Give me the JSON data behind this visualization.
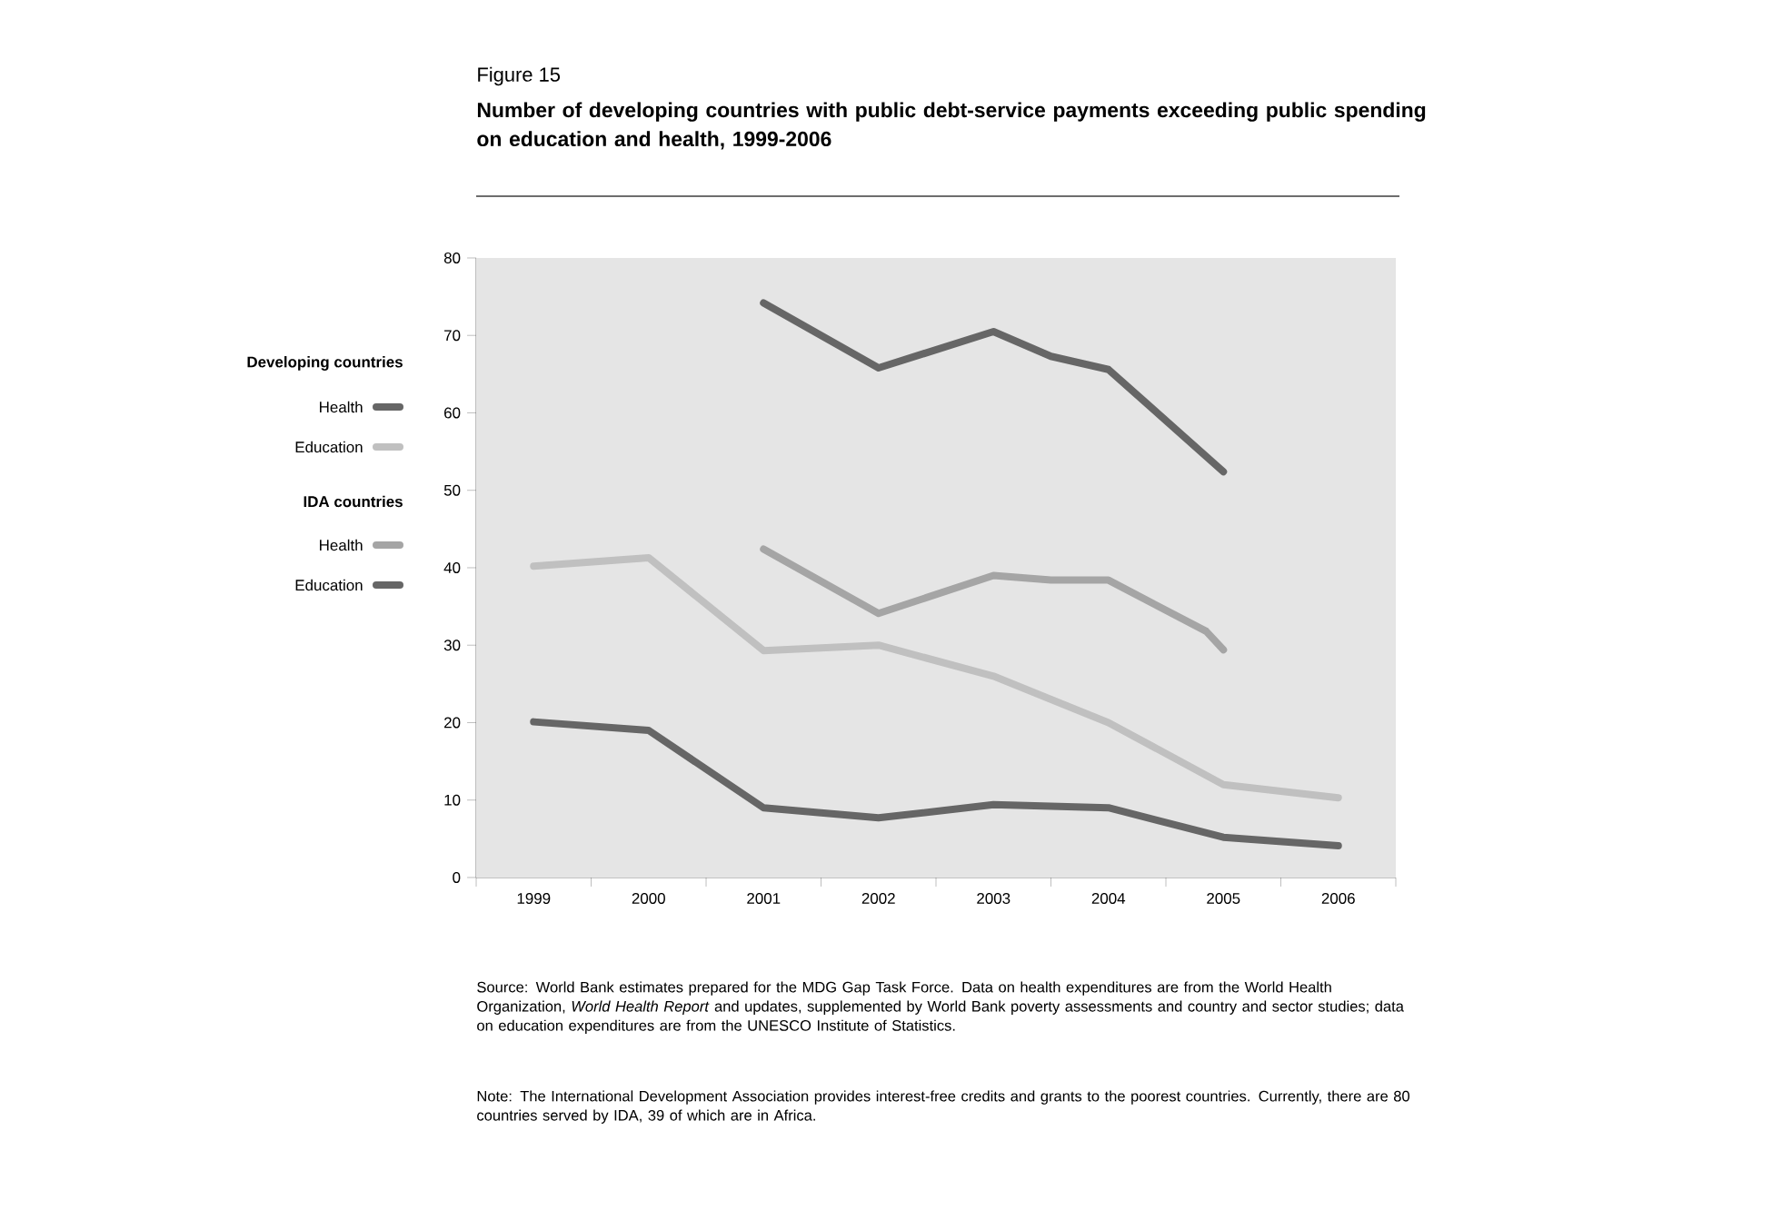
{
  "chart_data": {
    "type": "line",
    "title": "Figure 15",
    "subtitle": "Number of developing countries with public debt-service payments exceeding public spending on education and health, 1999-2006",
    "xlim": [
      1998.5,
      2006.5
    ],
    "xticks": [
      1999,
      2000,
      2001,
      2002,
      2003,
      2004,
      2005,
      2006
    ],
    "ylim": [
      0,
      80
    ],
    "yticks": [
      0,
      10,
      20,
      30,
      40,
      50,
      60,
      70,
      80
    ],
    "series": [
      {
        "name": "Health",
        "color": "#666666",
        "x": [
          2001,
          2002,
          2003,
          2003.5,
          2004,
          2005
        ],
        "values": [
          74.2,
          65.8,
          70.5,
          67.3,
          65.6,
          52.4
        ]
      },
      {
        "name": "Education",
        "color": "#c0c0c0",
        "x": [
          1999,
          2000,
          2001,
          2002,
          2003,
          2004,
          2005,
          2006
        ],
        "values": [
          40.2,
          41.3,
          29.3,
          30,
          26,
          20,
          12,
          10.3
        ]
      },
      {
        "name": "Health",
        "color": "#a5a5a5",
        "x": [
          2001,
          2002,
          2003,
          2003.5,
          2004,
          2004.85,
          2005
        ],
        "values": [
          42.4,
          34.1,
          39,
          38.4,
          38.4,
          31.8,
          29.4
        ]
      },
      {
        "name": "Education",
        "color": "#666666",
        "x": [
          1999,
          2000,
          2001,
          2002,
          2003,
          2004,
          2005,
          2006
        ],
        "values": [
          20.1,
          19,
          9,
          7.7,
          9.4,
          9,
          5.2,
          4.1
        ]
      }
    ],
    "legend": "left",
    "grid": false,
    "marker": "none",
    "line_style": "solid",
    "annotations": [
      "Developing countries",
      "IDA countries",
      "Source:  World Bank estimates prepared for the MDG Gap Task Force. Data on health expenditures are from the World Health Organization, *World Health Report* and updates, supplemented by World Bank poverty assessments and country and sector studies; data on education expenditures are from the UNESCO Institute of Statistics.",
      "Note:  The International Development Association provides interest-free credits and grants to the poorest countries. Currently, there are 80 countries served by IDA, 39 of which are in Africa."
    ]
  }
}
